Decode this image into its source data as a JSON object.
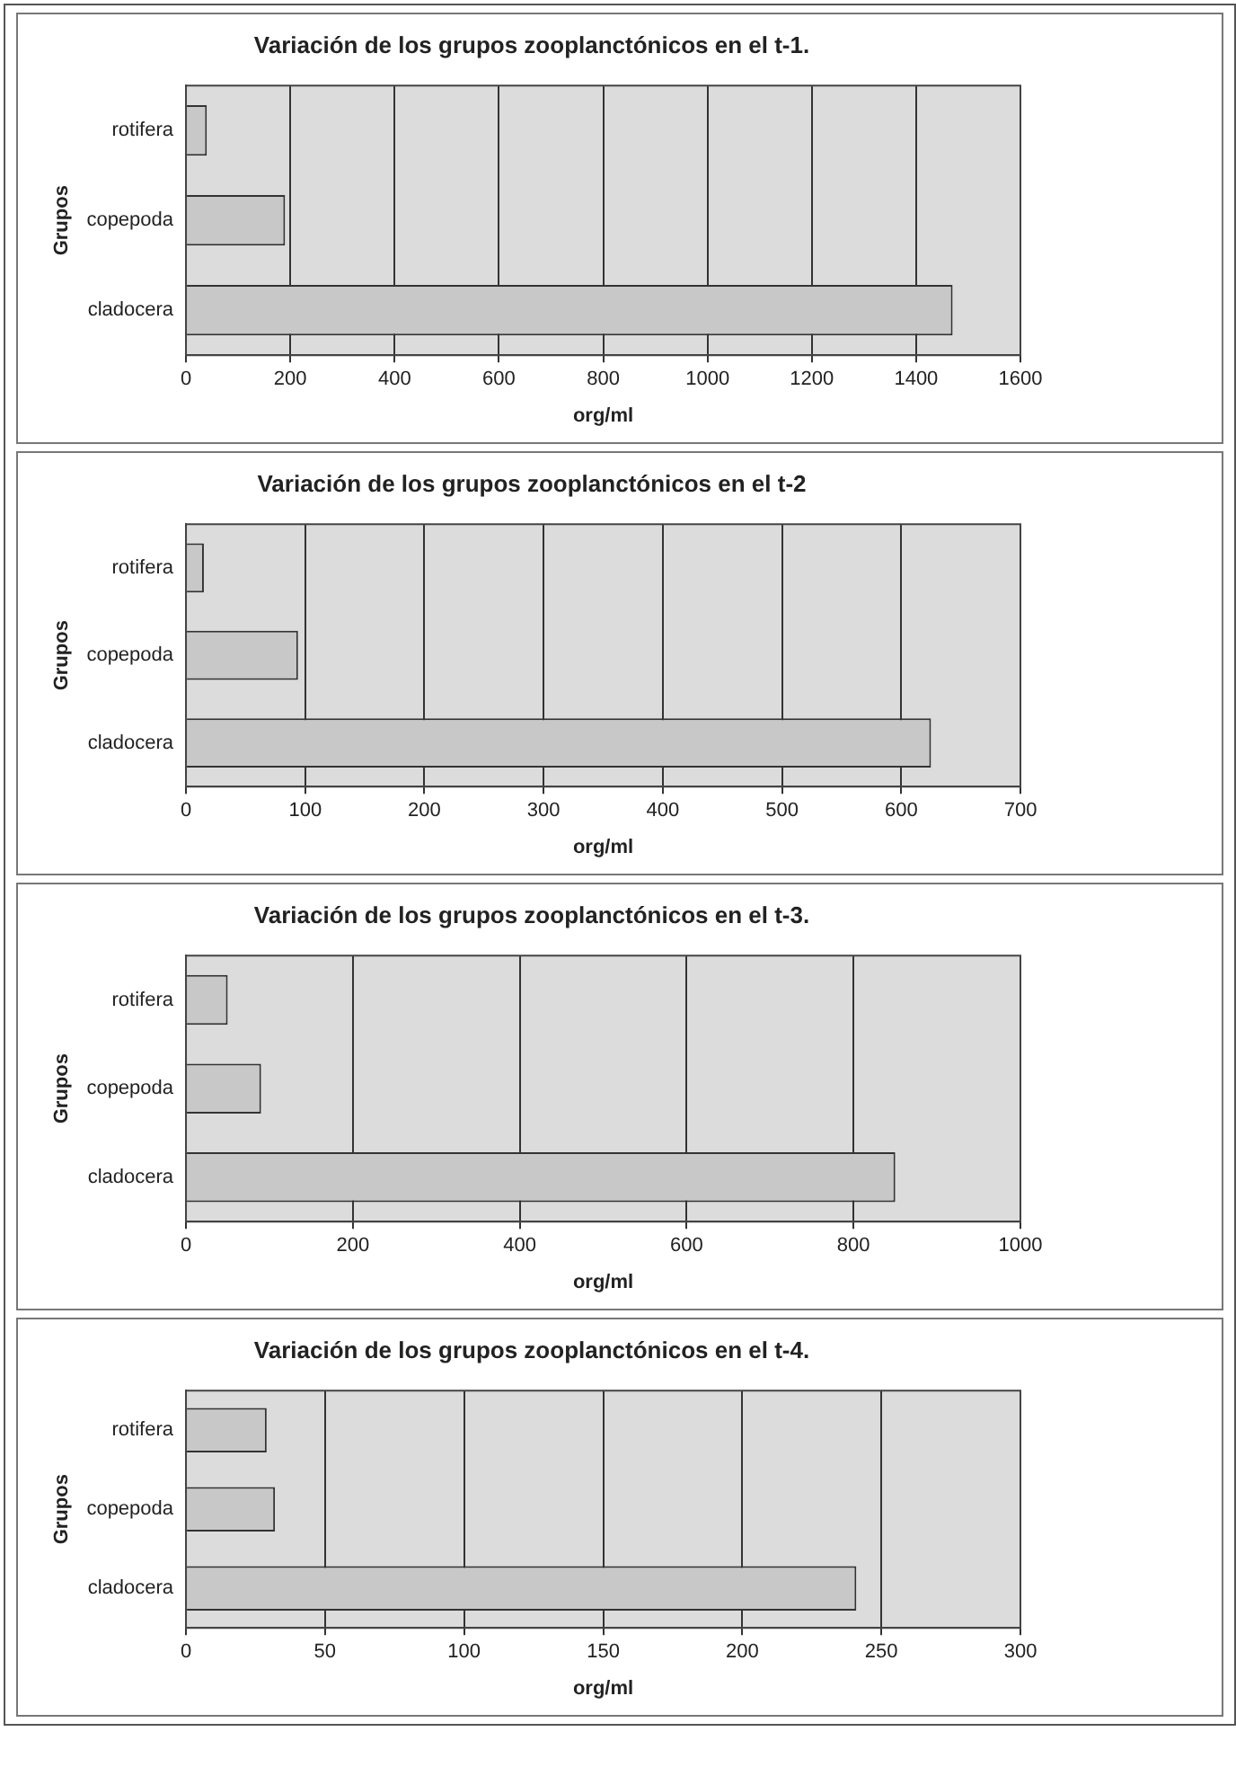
{
  "chart_data": [
    {
      "type": "bar",
      "orientation": "horizontal",
      "title": "Variación de los grupos zooplanctónicos en el t-1.",
      "xlabel": "org/ml",
      "ylabel": "Grupos",
      "categories": [
        "rotifera",
        "copepoda",
        "cladocera"
      ],
      "values": [
        40,
        190,
        1470
      ],
      "color": "#c8c8c8",
      "xlim": [
        0,
        1600
      ],
      "xticks": [
        0,
        200,
        400,
        600,
        800,
        1000,
        1200,
        1400,
        1600
      ],
      "grid": "x"
    },
    {
      "type": "bar",
      "orientation": "horizontal",
      "title": "Variación de los grupos zooplanctónicos en el t-2",
      "xlabel": "org/ml",
      "ylabel": "Grupos",
      "categories": [
        "rotifera",
        "copepoda",
        "cladocera"
      ],
      "values": [
        15,
        94,
        625
      ],
      "color": "#c8c8c8",
      "xlim": [
        0,
        700
      ],
      "xticks": [
        0,
        100,
        200,
        300,
        400,
        500,
        600,
        700
      ],
      "grid": "x"
    },
    {
      "type": "bar",
      "orientation": "horizontal",
      "title": "Variación de los grupos zooplanctónicos en el t-3.",
      "xlabel": "org/ml",
      "ylabel": "Grupos",
      "categories": [
        "rotifera",
        "copepoda",
        "cladocera"
      ],
      "values": [
        50,
        90,
        850
      ],
      "color": "#c8c8c8",
      "xlim": [
        0,
        1000
      ],
      "xticks": [
        0,
        200,
        400,
        600,
        800,
        1000
      ],
      "grid": "x"
    },
    {
      "type": "bar",
      "orientation": "horizontal",
      "title": "Variación de los grupos zooplanctónicos en el t-4.",
      "xlabel": "org/ml",
      "ylabel": "Grupos",
      "categories": [
        "rotifera",
        "copepoda",
        "cladocera"
      ],
      "values": [
        29,
        32,
        241
      ],
      "color": "#c8c8c8",
      "xlim": [
        0,
        300
      ],
      "xticks": [
        0,
        50,
        100,
        150,
        200,
        250,
        300
      ],
      "grid": "x"
    }
  ]
}
